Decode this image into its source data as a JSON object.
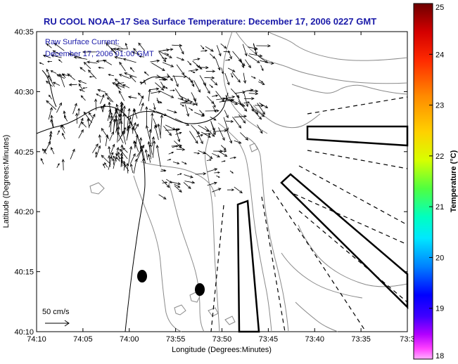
{
  "title": "RU COOL  NOAA−17  Sea Surface Temperature:  December 17, 2006 0227 GMT",
  "current_label_line1": "Raw Surface Current:",
  "current_label_line2": "December 17, 2006 01:00 GMT",
  "scale_label": "50 cm/s",
  "xlabel": "Longitude (Degrees:Minutes)",
  "ylabel": "Latitude (Degrees:Minutes)",
  "colorbar_label": "Temperature (°C)",
  "x_ticks": [
    "74:10",
    "74:05",
    "74:00",
    "73:55",
    "73:50",
    "73:45",
    "73:40",
    "73:35",
    "73:3"
  ],
  "y_ticks": [
    "40:35",
    "40:30",
    "40:25",
    "40:20",
    "40:15",
    "40:10"
  ],
  "colorbar_ticks": [
    "25",
    "24",
    "23",
    "22",
    "21",
    "20",
    "19",
    "18"
  ],
  "colorbar_range": [
    18,
    25
  ],
  "colors": {
    "title": "#1a1aa8",
    "land_contour": "#000000",
    "depth_contour": "#8a8a8a",
    "vectors": "#000000"
  }
}
